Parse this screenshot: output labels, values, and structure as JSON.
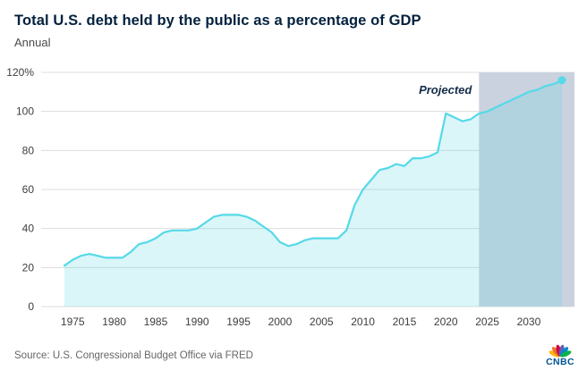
{
  "header": {
    "title": "Total U.S. debt held by the public as a percentage of GDP",
    "subtitle": "Annual"
  },
  "footer": {
    "source": "Source: U.S. Congressional Budget Office via FRED",
    "logo_text": "CNBC",
    "logo_color": "#005594",
    "logo_feather_colors": [
      "#FCB711",
      "#F37021",
      "#CC004C",
      "#6460AA",
      "#0089D0",
      "#0DB14B"
    ]
  },
  "chart_data": {
    "type": "area",
    "title": "Total U.S. debt held by the public as a percentage of GDP",
    "subtitle": "Annual",
    "xlabel": "",
    "ylabel": "",
    "ylim": [
      0,
      120
    ],
    "ytick_step": 20,
    "ytick_top_label": "120%",
    "grid": true,
    "legend_position": "none",
    "x": [
      1974,
      1975,
      1976,
      1977,
      1978,
      1979,
      1980,
      1981,
      1982,
      1983,
      1984,
      1985,
      1986,
      1987,
      1988,
      1989,
      1990,
      1991,
      1992,
      1993,
      1994,
      1995,
      1996,
      1997,
      1998,
      1999,
      2000,
      2001,
      2002,
      2003,
      2004,
      2005,
      2006,
      2007,
      2008,
      2009,
      2010,
      2011,
      2012,
      2013,
      2014,
      2015,
      2016,
      2017,
      2018,
      2019,
      2020,
      2021,
      2022,
      2023,
      2024,
      2025,
      2026,
      2027,
      2028,
      2029,
      2030,
      2031,
      2032,
      2033,
      2034
    ],
    "values": [
      21,
      24,
      26,
      27,
      26,
      25,
      25,
      25,
      28,
      32,
      33,
      35,
      38,
      39,
      39,
      39,
      40,
      43,
      46,
      47,
      47,
      47,
      46,
      44,
      41,
      38,
      33,
      31,
      32,
      34,
      35,
      35,
      35,
      35,
      39,
      52,
      60,
      65,
      70,
      71,
      73,
      72,
      76,
      76,
      77,
      79,
      99,
      97,
      95,
      96,
      99,
      100,
      102,
      104,
      106,
      108,
      110,
      111,
      113,
      114,
      116
    ],
    "xticks": [
      1975,
      1980,
      1985,
      1990,
      1995,
      2000,
      2005,
      2010,
      2015,
      2020,
      2025,
      2030
    ],
    "projected_start": 2024,
    "projected_label": "Projected",
    "projected_label_value": 109,
    "colors": {
      "line": "#56d9e8",
      "area": "rgba(88,214,228,0.22)",
      "projected_band": "#c9d2de",
      "grid": "#dcdcdc",
      "axis_text": "#3d3d3d",
      "projected_label": "#132c47"
    }
  }
}
